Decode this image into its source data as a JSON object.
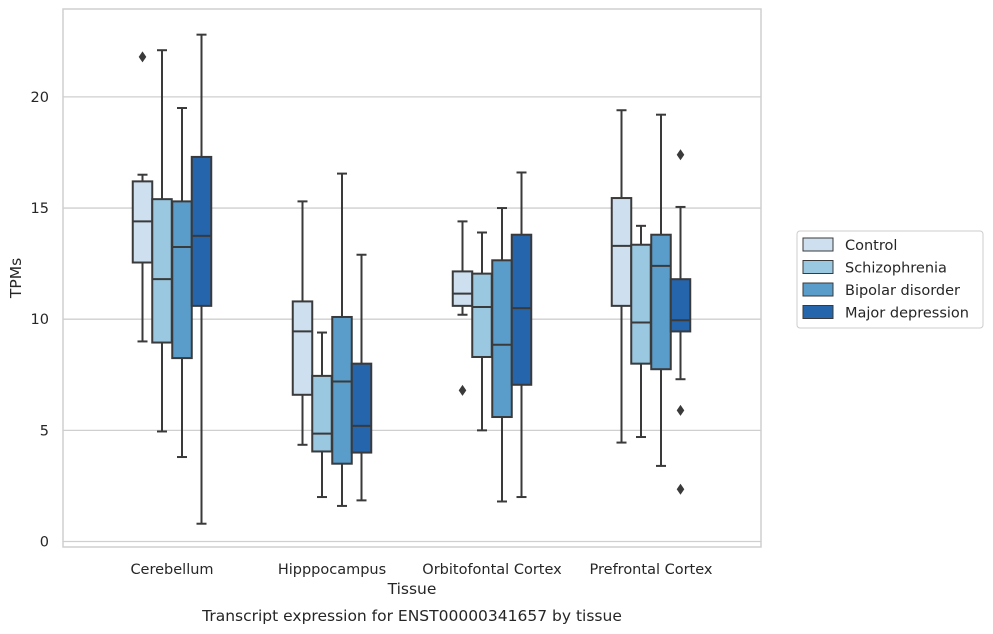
{
  "chart_data": {
    "type": "boxplot",
    "title": "",
    "caption": "Transcript expression for ENST00000341657 by tissue",
    "xlabel": "Tissue",
    "ylabel": "TPMs",
    "ylim": [
      -0.3,
      24
    ],
    "yticks": [
      0,
      5,
      10,
      15,
      20
    ],
    "grid": "horizontal",
    "legend_position": "right",
    "categories": [
      "Cerebellum",
      "Hipppocampus",
      "Orbitofontal Cortex",
      "Prefrontal Cortex"
    ],
    "series": [
      {
        "name": "Control",
        "color": "#cedfef",
        "boxes": [
          {
            "whislo": 9.0,
            "q1": 12.55,
            "med": 14.4,
            "q3": 16.2,
            "whishi": 16.5,
            "fliers": [
              21.8
            ]
          },
          {
            "whislo": 4.35,
            "q1": 6.6,
            "med": 9.45,
            "q3": 10.8,
            "whishi": 15.3,
            "fliers": []
          },
          {
            "whislo": 10.2,
            "q1": 10.6,
            "med": 11.15,
            "q3": 12.15,
            "whishi": 14.4,
            "fliers": [
              6.8
            ]
          },
          {
            "whislo": 4.45,
            "q1": 10.6,
            "med": 13.3,
            "q3": 15.45,
            "whishi": 19.4,
            "fliers": []
          }
        ]
      },
      {
        "name": "Schizophrenia",
        "color": "#9ac8e0",
        "boxes": [
          {
            "whislo": 4.95,
            "q1": 8.95,
            "med": 11.8,
            "q3": 15.4,
            "whishi": 22.1,
            "fliers": []
          },
          {
            "whislo": 2.0,
            "q1": 4.05,
            "med": 4.85,
            "q3": 7.45,
            "whishi": 9.4,
            "fliers": []
          },
          {
            "whislo": 5.0,
            "q1": 8.3,
            "med": 10.55,
            "q3": 12.05,
            "whishi": 13.9,
            "fliers": []
          },
          {
            "whislo": 4.7,
            "q1": 8.0,
            "med": 9.85,
            "q3": 13.35,
            "whishi": 14.2,
            "fliers": []
          }
        ]
      },
      {
        "name": "Bipolar disorder",
        "color": "#5a9dcb",
        "boxes": [
          {
            "whislo": 3.8,
            "q1": 8.25,
            "med": 13.25,
            "q3": 15.3,
            "whishi": 19.5,
            "fliers": []
          },
          {
            "whislo": 1.6,
            "q1": 3.5,
            "med": 7.2,
            "q3": 10.1,
            "whishi": 16.55,
            "fliers": []
          },
          {
            "whislo": 1.8,
            "q1": 5.6,
            "med": 8.85,
            "q3": 12.65,
            "whishi": 15.0,
            "fliers": []
          },
          {
            "whislo": 3.4,
            "q1": 7.75,
            "med": 12.4,
            "q3": 13.8,
            "whishi": 19.2,
            "fliers": []
          }
        ]
      },
      {
        "name": "Major depression",
        "color": "#2565ab",
        "boxes": [
          {
            "whislo": 0.8,
            "q1": 10.6,
            "med": 13.75,
            "q3": 17.3,
            "whishi": 22.8,
            "fliers": []
          },
          {
            "whislo": 1.85,
            "q1": 4.0,
            "med": 5.2,
            "q3": 8.0,
            "whishi": 12.9,
            "fliers": []
          },
          {
            "whislo": 2.0,
            "q1": 7.05,
            "med": 10.5,
            "q3": 13.8,
            "whishi": 16.6,
            "fliers": []
          },
          {
            "whislo": 7.3,
            "q1": 9.45,
            "med": 9.95,
            "q3": 11.8,
            "whishi": 15.05,
            "fliers": [
              17.4,
              5.9,
              2.35
            ]
          }
        ]
      }
    ]
  },
  "colors": {
    "grid": "#cfcfcf",
    "frame": "#cfcfcf",
    "box_edge": "#3a3a3a"
  }
}
